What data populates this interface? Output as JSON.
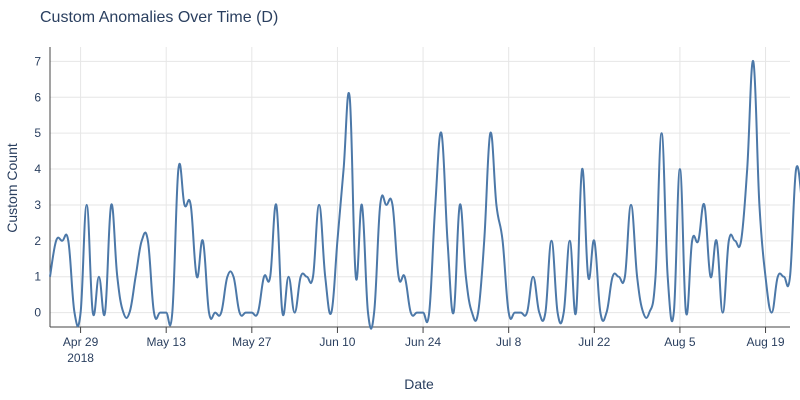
{
  "chart_data": {
    "type": "line",
    "title": "Custom Anomalies Over Time (D)",
    "xlabel": "Date",
    "ylabel": "Custom Count",
    "ylim": [
      -0.4,
      7.4
    ],
    "yticks": [
      0,
      1,
      2,
      3,
      4,
      5,
      6,
      7
    ],
    "x_start": "2018-04-24",
    "x_range_days": [
      0,
      121
    ],
    "xticks": [
      {
        "day": 5,
        "label": "Apr 29",
        "sublabel": "2018"
      },
      {
        "day": 19,
        "label": "May 13"
      },
      {
        "day": 33,
        "label": "May 27"
      },
      {
        "day": 47,
        "label": "Jun 10"
      },
      {
        "day": 61,
        "label": "Jun 24"
      },
      {
        "day": 75,
        "label": "Jul 8"
      },
      {
        "day": 89,
        "label": "Jul 22"
      },
      {
        "day": 103,
        "label": "Aug 5"
      },
      {
        "day": 117,
        "label": "Aug 19"
      }
    ],
    "series": [
      {
        "name": "Custom Count",
        "color": "#4c78a8",
        "values": [
          1,
          2,
          2,
          2,
          0,
          0,
          3,
          0,
          1,
          0,
          3,
          1,
          0,
          0,
          1,
          2,
          2,
          0,
          0,
          0,
          0,
          4,
          3,
          3,
          1,
          2,
          0,
          0,
          0,
          1,
          1,
          0,
          0,
          0,
          0,
          1,
          1,
          3,
          0,
          1,
          0,
          1,
          1,
          1,
          3,
          1,
          0,
          2,
          4,
          6,
          1,
          3,
          0,
          0,
          3,
          3,
          3,
          1,
          1,
          0,
          0,
          0,
          0,
          3,
          5,
          2,
          0,
          3,
          1,
          0,
          0,
          2,
          5,
          3,
          2,
          0,
          0,
          0,
          0,
          1,
          0,
          0,
          2,
          0,
          0,
          2,
          0,
          4,
          1,
          2,
          0,
          0,
          1,
          1,
          1,
          3,
          1,
          0,
          0,
          1,
          5,
          1,
          0,
          4,
          0,
          2,
          2,
          3,
          1,
          2,
          0,
          2,
          2,
          2,
          4,
          7,
          3,
          1,
          0,
          1,
          1,
          1,
          4,
          3
        ]
      }
    ]
  }
}
